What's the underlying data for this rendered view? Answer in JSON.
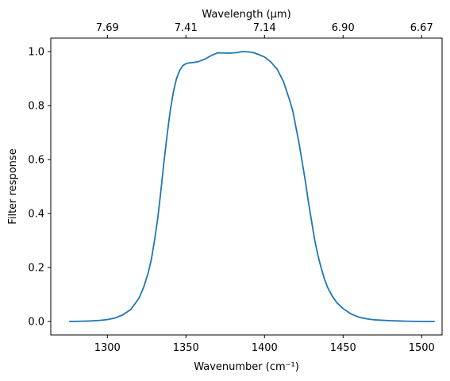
{
  "chart_data": {
    "type": "line",
    "title": "",
    "xlabel": "Wavenumber (cm⁻¹)",
    "ylabel": "Filter response",
    "top_xlabel": "Wavelength (μm)",
    "xlim": [
      1264,
      1513
    ],
    "ylim": [
      -0.05,
      1.05
    ],
    "grid": false,
    "line_color": "#1f77b4",
    "x_ticks": [
      {
        "value": 1300,
        "label": "1300"
      },
      {
        "value": 1350,
        "label": "1350"
      },
      {
        "value": 1400,
        "label": "1400"
      },
      {
        "value": 1450,
        "label": "1450"
      },
      {
        "value": 1500,
        "label": "1500"
      }
    ],
    "y_ticks": [
      {
        "value": 0.0,
        "label": "0.0"
      },
      {
        "value": 0.2,
        "label": "0.2"
      },
      {
        "value": 0.4,
        "label": "0.4"
      },
      {
        "value": 0.6,
        "label": "0.6"
      },
      {
        "value": 0.8,
        "label": "0.8"
      },
      {
        "value": 1.0,
        "label": "1.0"
      }
    ],
    "top_ticks": [
      {
        "value": 1300,
        "label": "7.69"
      },
      {
        "value": 1350,
        "label": "7.41"
      },
      {
        "value": 1400,
        "label": "7.14"
      },
      {
        "value": 1450,
        "label": "6.90"
      },
      {
        "value": 1500,
        "label": "6.67"
      }
    ],
    "series": [
      {
        "x": [
          1276,
          1285,
          1290,
          1295,
          1300,
          1305,
          1310,
          1315,
          1320,
          1323,
          1326,
          1328,
          1330,
          1332,
          1334,
          1336,
          1338,
          1340,
          1342,
          1344,
          1346,
          1348,
          1350,
          1352,
          1355,
          1358,
          1362,
          1366,
          1370,
          1374,
          1378,
          1382,
          1386,
          1390,
          1393,
          1396,
          1400,
          1404,
          1408,
          1412,
          1416,
          1418,
          1420,
          1422,
          1424,
          1426,
          1428,
          1430,
          1432,
          1434,
          1436,
          1438,
          1440,
          1443,
          1446,
          1450,
          1455,
          1460,
          1465,
          1470,
          1480,
          1490,
          1500,
          1508
        ],
        "y": [
          0.0,
          0.001,
          0.002,
          0.004,
          0.007,
          0.013,
          0.025,
          0.045,
          0.085,
          0.125,
          0.18,
          0.23,
          0.3,
          0.38,
          0.48,
          0.59,
          0.69,
          0.78,
          0.85,
          0.9,
          0.93,
          0.948,
          0.955,
          0.958,
          0.96,
          0.963,
          0.972,
          0.985,
          0.995,
          0.995,
          0.994,
          0.996,
          1.0,
          0.999,
          0.996,
          0.99,
          0.98,
          0.962,
          0.935,
          0.89,
          0.82,
          0.78,
          0.72,
          0.66,
          0.59,
          0.52,
          0.44,
          0.37,
          0.3,
          0.245,
          0.2,
          0.16,
          0.128,
          0.095,
          0.07,
          0.048,
          0.028,
          0.016,
          0.01,
          0.006,
          0.003,
          0.001,
          0.0,
          0.0
        ]
      }
    ]
  }
}
